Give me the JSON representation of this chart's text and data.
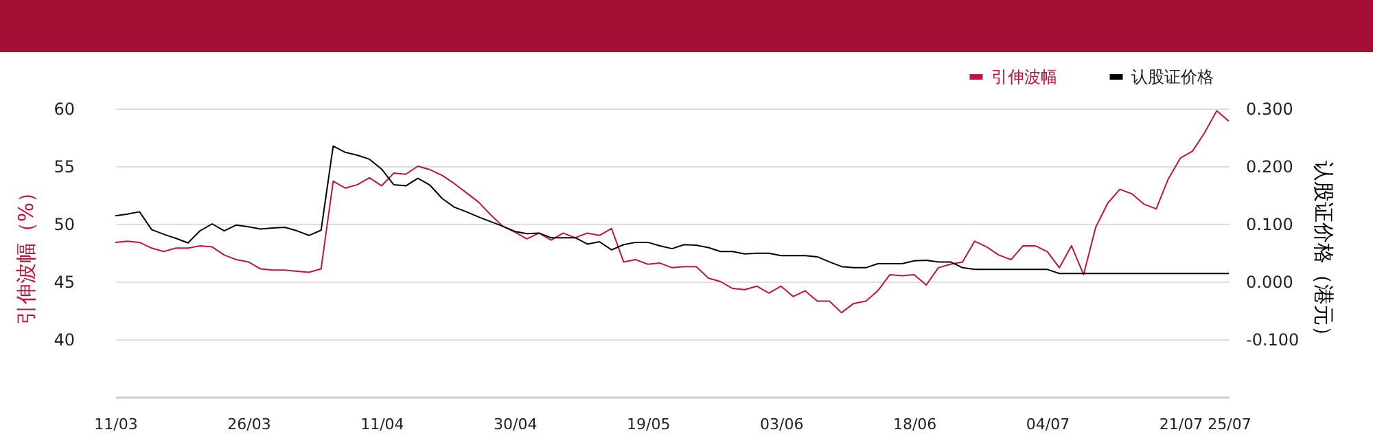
{
  "chart_data": {
    "type": "line",
    "ylabel": "引伸波幅（%）",
    "y2label": "认股证价格（港元）",
    "categories": [
      "11/03",
      null,
      null,
      null,
      null,
      null,
      null,
      null,
      null,
      null,
      null,
      "26/03",
      null,
      null,
      null,
      null,
      null,
      null,
      null,
      null,
      null,
      null,
      "11/04",
      null,
      null,
      null,
      null,
      null,
      null,
      null,
      null,
      null,
      null,
      "30/04",
      null,
      null,
      null,
      null,
      null,
      null,
      null,
      null,
      null,
      null,
      "19/05",
      null,
      null,
      null,
      null,
      null,
      null,
      null,
      null,
      null,
      null,
      "03/06",
      null,
      null,
      null,
      null,
      null,
      null,
      null,
      null,
      null,
      null,
      "18/06",
      null,
      null,
      null,
      null,
      null,
      null,
      null,
      null,
      null,
      null,
      "04/07",
      null,
      null,
      null,
      null,
      null,
      null,
      null,
      null,
      null,
      null,
      "21/07",
      null,
      null,
      null,
      "25/07"
    ],
    "series": [
      {
        "name": "引伸波幅",
        "color": "#c0143c",
        "values": [
          48.4,
          48.5,
          48.4,
          47.9,
          47.6,
          47.9,
          47.9,
          48.1,
          48.0,
          47.3,
          46.9,
          46.7,
          46.1,
          46.0,
          46.0,
          45.9,
          45.8,
          46.1,
          53.7,
          53.1,
          53.4,
          54.0,
          53.3,
          54.4,
          54.3,
          55.0,
          54.7,
          54.2,
          53.5,
          52.7,
          51.9,
          50.8,
          49.8,
          49.3,
          48.7,
          49.2,
          48.6,
          49.2,
          48.8,
          49.2,
          49.0,
          49.6,
          46.7,
          46.9,
          46.5,
          46.6,
          46.2,
          46.3,
          46.3,
          45.3,
          45.0,
          44.4,
          44.3,
          44.6,
          44.0,
          44.6,
          43.7,
          44.2,
          43.3,
          43.3,
          42.3,
          43.1,
          43.3,
          44.2,
          45.6,
          45.5,
          45.6,
          44.7,
          46.2,
          46.5,
          46.7,
          48.5,
          48.0,
          47.3,
          46.9,
          48.1,
          48.1,
          47.6,
          46.2,
          48.1,
          45.6,
          49.7,
          51.8,
          53.0,
          52.6,
          51.7,
          51.3,
          53.9,
          55.7,
          56.3,
          57.9,
          59.8,
          58.9
        ]
      },
      {
        "name": "认股证价格",
        "color": "#000000",
        "axis": "y2",
        "values": [
          0.114,
          0.117,
          0.121,
          0.09,
          0.082,
          0.075,
          0.067,
          0.088,
          0.1,
          0.088,
          0.098,
          0.095,
          0.091,
          0.093,
          0.094,
          0.088,
          0.08,
          0.089,
          0.235,
          0.224,
          0.219,
          0.212,
          0.195,
          0.168,
          0.166,
          0.179,
          0.167,
          0.144,
          0.129,
          0.121,
          0.112,
          0.104,
          0.096,
          0.087,
          0.083,
          0.084,
          0.076,
          0.076,
          0.076,
          0.065,
          0.069,
          0.055,
          0.064,
          0.068,
          0.068,
          0.062,
          0.057,
          0.064,
          0.063,
          0.059,
          0.052,
          0.052,
          0.048,
          0.049,
          0.049,
          0.045,
          0.045,
          0.045,
          0.043,
          0.034,
          0.026,
          0.024,
          0.024,
          0.031,
          0.031,
          0.031,
          0.036,
          0.037,
          0.034,
          0.034,
          0.024,
          0.021,
          0.021,
          0.021,
          0.021,
          0.021,
          0.021,
          0.021,
          0.014,
          0.014,
          0.014,
          0.014,
          0.014,
          0.014,
          0.014,
          0.014,
          0.014,
          0.014,
          0.014,
          0.014,
          0.014,
          0.014,
          0.014
        ]
      }
    ],
    "ylim": [
      35,
      60
    ],
    "yticks": [
      40,
      45,
      50,
      55,
      60
    ],
    "y2lim": [
      -0.2,
      0.3
    ],
    "y2ticks": [
      {
        "value": -0.1,
        "label": "-0.100"
      },
      {
        "value": 0,
        "label": "0.000"
      },
      {
        "value": 0.1,
        "label": "0.100"
      },
      {
        "value": 0.2,
        "label": "0.200"
      },
      {
        "value": 0.3,
        "label": "0.300"
      }
    ],
    "grid": "y",
    "legend": "top right",
    "marker": "none",
    "line_style": "solid"
  }
}
